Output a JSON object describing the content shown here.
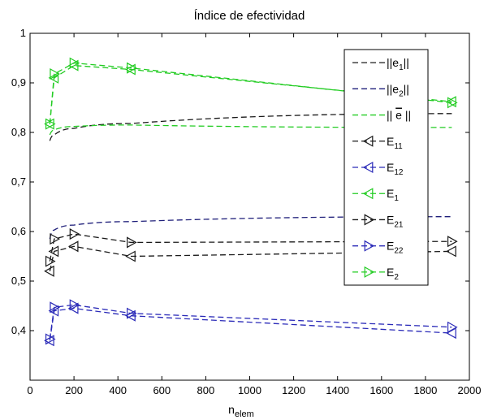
{
  "chart_data": {
    "type": "line",
    "title": "Índice de efectividad",
    "xlabel": "n",
    "xlabel_sub": "elem",
    "ylabel": "",
    "xlim": [
      0,
      2000
    ],
    "ylim": [
      0.3,
      1.0
    ],
    "xticks": [
      0,
      200,
      400,
      600,
      800,
      1000,
      1200,
      1400,
      1600,
      1800,
      2000
    ],
    "xtick_labels": [
      "0",
      "200",
      "400",
      "600",
      "800",
      "1000",
      "1200",
      "1400",
      "1600",
      "1800",
      "2000"
    ],
    "yticks": [
      0.4,
      0.5,
      0.6,
      0.7,
      0.8,
      0.9,
      1.0
    ],
    "ytick_labels": [
      "0,4",
      "0,5",
      "0,6",
      "0,7",
      "0,8",
      "0,9",
      "1"
    ],
    "grid": false,
    "legend_position": "top-right",
    "colors": {
      "black": "#1a1a1a",
      "navy": "#1f1f7a",
      "green": "#22cc22",
      "blue": "#2a2ab8"
    },
    "series": [
      {
        "name": "||e₁||",
        "legend_main": "||e",
        "legend_sub": "1",
        "legend_tail": "||",
        "color": "#1a1a1a",
        "marker": "none",
        "smooth": true,
        "x": [
          90,
          110,
          200,
          460,
          1920
        ],
        "y": [
          0.783,
          0.795,
          0.808,
          0.818,
          0.838
        ]
      },
      {
        "name": "||e₂||",
        "legend_main": "||e",
        "legend_sub": "2",
        "legend_tail": "||",
        "color": "#1f1f7a",
        "marker": "none",
        "smooth": true,
        "x": [
          90,
          110,
          200,
          460,
          1920
        ],
        "y": [
          0.585,
          0.603,
          0.613,
          0.62,
          0.63
        ]
      },
      {
        "name": "|| ē ||",
        "legend_main": "|| ",
        "legend_over": "e",
        "legend_tail": " ||",
        "color": "#22cc22",
        "marker": "none",
        "smooth": true,
        "x": [
          90,
          110,
          200,
          460,
          1920
        ],
        "y": [
          0.795,
          0.805,
          0.812,
          0.815,
          0.81
        ]
      },
      {
        "name": "E₁₁",
        "legend_main": "E",
        "legend_sub": "11",
        "color": "#1a1a1a",
        "marker": "triangle-left",
        "x": [
          90,
          110,
          200,
          460,
          1920
        ],
        "y": [
          0.52,
          0.56,
          0.57,
          0.55,
          0.56
        ]
      },
      {
        "name": "E₁₂",
        "legend_main": "E",
        "legend_sub": "12",
        "color": "#2a2ab8",
        "marker": "triangle-left",
        "x": [
          90,
          110,
          200,
          460,
          1920
        ],
        "y": [
          0.38,
          0.44,
          0.445,
          0.43,
          0.395
        ]
      },
      {
        "name": "E₁",
        "legend_main": "E",
        "legend_sub": "1",
        "color": "#22cc22",
        "marker": "triangle-left",
        "x": [
          90,
          110,
          200,
          460,
          1920
        ],
        "y": [
          0.817,
          0.91,
          0.935,
          0.927,
          0.862
        ]
      },
      {
        "name": "E₂₁",
        "legend_main": "E",
        "legend_sub": "21",
        "color": "#1a1a1a",
        "marker": "triangle-right",
        "x": [
          90,
          110,
          200,
          460,
          1920
        ],
        "y": [
          0.54,
          0.585,
          0.595,
          0.578,
          0.58
        ]
      },
      {
        "name": "E₂₂",
        "legend_main": "E",
        "legend_sub": "22",
        "color": "#2a2ab8",
        "marker": "triangle-right",
        "x": [
          90,
          110,
          200,
          460,
          1920
        ],
        "y": [
          0.383,
          0.447,
          0.452,
          0.435,
          0.407
        ]
      },
      {
        "name": "E₂",
        "legend_main": "E",
        "legend_sub": "2",
        "color": "#22cc22",
        "marker": "triangle-right",
        "x": [
          90,
          110,
          200,
          460,
          1920
        ],
        "y": [
          0.817,
          0.918,
          0.94,
          0.93,
          0.86
        ]
      }
    ]
  }
}
